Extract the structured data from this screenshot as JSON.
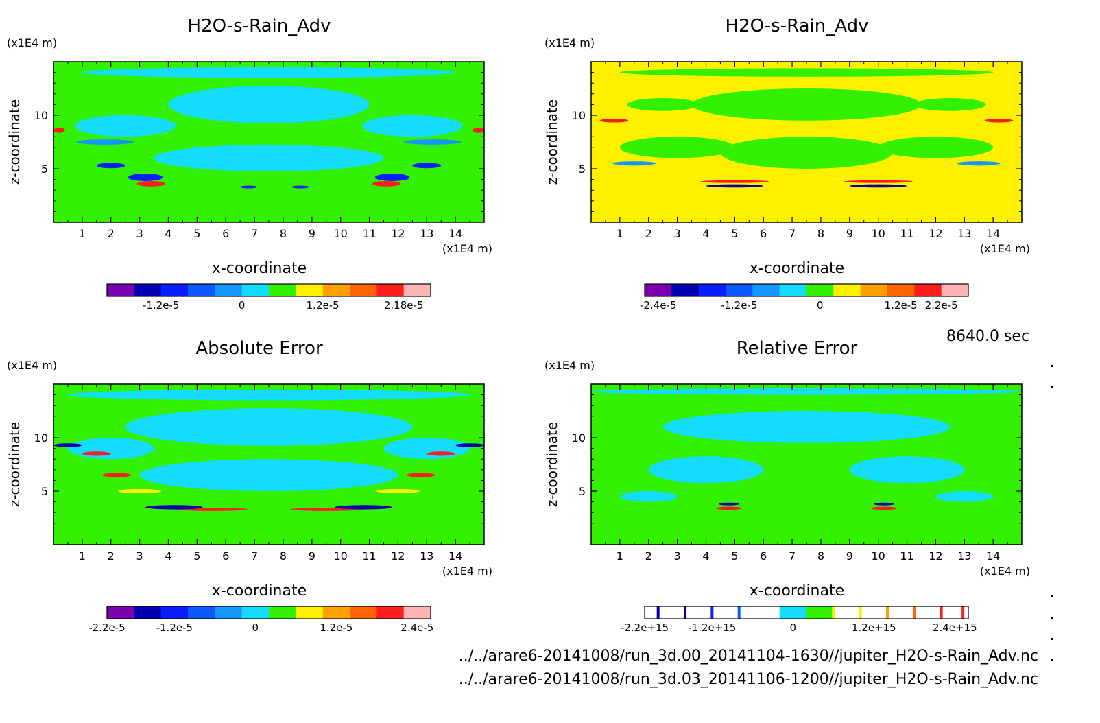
{
  "time_label": "8640.0 sec",
  "files": [
    "../../arare6-20141008/run_3d.00_20141104-1630//jupiter_H2O-s-Rain_Adv.nc",
    "../../arare6-20141008/run_3d.03_20141106-1200//jupiter_H2O-s-Rain_Adv.nc"
  ],
  "colors": {
    "purple": "#7a00b0",
    "navy": "#0000b0",
    "blue": "#0a1eff",
    "mid_blue": "#0a5aff",
    "sky": "#1496ff",
    "cyan": "#14dcff",
    "green": "#32f000",
    "yellow": "#fff000",
    "orange": "#ffa000",
    "dark_orange": "#ff6400",
    "red": "#ff1e1e",
    "pink": "#ffb4b4"
  },
  "chart_data": [
    {
      "type": "heatmap",
      "title": "H2O-s-Rain_Adv",
      "xlabel": "x-coordinate",
      "ylabel": "z-coordinate",
      "x_unit": "(x1E4 m)",
      "y_unit": "(x1E4 m)",
      "xlim": [
        0,
        15
      ],
      "ylim": [
        0,
        15
      ],
      "x_ticks": [
        1,
        2,
        3,
        4,
        5,
        6,
        7,
        8,
        9,
        10,
        11,
        12,
        13,
        14
      ],
      "y_ticks": [
        5,
        10
      ],
      "background": "green",
      "colorbar_colors": [
        "purple",
        "navy",
        "blue",
        "mid_blue",
        "sky",
        "cyan",
        "green",
        "yellow",
        "orange",
        "dark_orange",
        "red",
        "pink"
      ],
      "colorbar_labels": [
        "-1.2e-5",
        "0",
        "1.2e-5",
        "2.18e-5"
      ],
      "colorbar_label_pos": [
        2,
        5,
        8,
        11
      ],
      "blobs": [
        {
          "x": 7.5,
          "z": 11,
          "w": 7,
          "h": 3.5,
          "c": "cyan"
        },
        {
          "x": 7.5,
          "z": 6,
          "w": 8,
          "h": 2.5,
          "c": "cyan"
        },
        {
          "x": 2.5,
          "z": 9,
          "w": 3.5,
          "h": 2,
          "c": "cyan"
        },
        {
          "x": 12.5,
          "z": 9,
          "w": 3.5,
          "h": 2,
          "c": "cyan"
        },
        {
          "x": 7.5,
          "z": 14,
          "w": 13,
          "h": 1,
          "c": "cyan"
        },
        {
          "x": 1.8,
          "z": 7.5,
          "w": 2,
          "h": 0.5,
          "c": "sky"
        },
        {
          "x": 13.2,
          "z": 7.5,
          "w": 2,
          "h": 0.5,
          "c": "sky"
        },
        {
          "x": 3.2,
          "z": 4.2,
          "w": 1.2,
          "h": 0.7,
          "c": "blue"
        },
        {
          "x": 11.8,
          "z": 4.2,
          "w": 1.2,
          "h": 0.7,
          "c": "blue"
        },
        {
          "x": 3.4,
          "z": 3.6,
          "w": 1,
          "h": 0.5,
          "c": "red"
        },
        {
          "x": 11.6,
          "z": 3.6,
          "w": 1,
          "h": 0.5,
          "c": "red"
        },
        {
          "x": 2,
          "z": 5.3,
          "w": 1,
          "h": 0.5,
          "c": "blue"
        },
        {
          "x": 13,
          "z": 5.3,
          "w": 1,
          "h": 0.5,
          "c": "blue"
        },
        {
          "x": 0.2,
          "z": 8.6,
          "w": 0.4,
          "h": 0.5,
          "c": "red"
        },
        {
          "x": 14.8,
          "z": 8.6,
          "w": 0.4,
          "h": 0.5,
          "c": "red"
        },
        {
          "x": 6.8,
          "z": 3.3,
          "w": 0.6,
          "h": 0.25,
          "c": "blue"
        },
        {
          "x": 8.6,
          "z": 3.3,
          "w": 0.6,
          "h": 0.25,
          "c": "blue"
        }
      ]
    },
    {
      "type": "heatmap",
      "title": "H2O-s-Rain_Adv",
      "xlabel": "x-coordinate",
      "ylabel": "z-coordinate",
      "x_unit": "(x1E4 m)",
      "y_unit": "(x1E4 m)",
      "xlim": [
        0,
        15
      ],
      "ylim": [
        0,
        15
      ],
      "x_ticks": [
        1,
        2,
        3,
        4,
        5,
        6,
        7,
        8,
        9,
        10,
        11,
        12,
        13,
        14
      ],
      "y_ticks": [
        5,
        10
      ],
      "background": "yellow",
      "colorbar_colors": [
        "purple",
        "navy",
        "blue",
        "mid_blue",
        "sky",
        "cyan",
        "green",
        "yellow",
        "orange",
        "dark_orange",
        "red",
        "pink"
      ],
      "colorbar_labels": [
        "-2.4e-5",
        "-1.2e-5",
        "0",
        "1.2e-5",
        "2.2e-5"
      ],
      "colorbar_label_pos": [
        0.5,
        3.5,
        6.5,
        9.5,
        11
      ],
      "blobs": [
        {
          "x": 7.5,
          "z": 11,
          "w": 8,
          "h": 3,
          "c": "green"
        },
        {
          "x": 7.5,
          "z": 6.5,
          "w": 6,
          "h": 3,
          "c": "green"
        },
        {
          "x": 3,
          "z": 7,
          "w": 4,
          "h": 2,
          "c": "green"
        },
        {
          "x": 12,
          "z": 7,
          "w": 4,
          "h": 2,
          "c": "green"
        },
        {
          "x": 7.5,
          "z": 14,
          "w": 13,
          "h": 0.8,
          "c": "green"
        },
        {
          "x": 2.5,
          "z": 11,
          "w": 2.5,
          "h": 1.2,
          "c": "green"
        },
        {
          "x": 12.5,
          "z": 11,
          "w": 2.5,
          "h": 1.2,
          "c": "green"
        },
        {
          "x": 5,
          "z": 3.4,
          "w": 2,
          "h": 0.3,
          "c": "navy"
        },
        {
          "x": 10,
          "z": 3.4,
          "w": 2,
          "h": 0.3,
          "c": "navy"
        },
        {
          "x": 5,
          "z": 3.8,
          "w": 2.4,
          "h": 0.25,
          "c": "red"
        },
        {
          "x": 10,
          "z": 3.8,
          "w": 2.4,
          "h": 0.25,
          "c": "red"
        },
        {
          "x": 0.8,
          "z": 9.5,
          "w": 1,
          "h": 0.35,
          "c": "red"
        },
        {
          "x": 14.2,
          "z": 9.5,
          "w": 1,
          "h": 0.35,
          "c": "red"
        },
        {
          "x": 1.5,
          "z": 5.5,
          "w": 1.5,
          "h": 0.4,
          "c": "sky"
        },
        {
          "x": 13.5,
          "z": 5.5,
          "w": 1.5,
          "h": 0.4,
          "c": "sky"
        }
      ]
    },
    {
      "type": "heatmap",
      "title": "Absolute Error",
      "xlabel": "x-coordinate",
      "ylabel": "z-coordinate",
      "x_unit": "(x1E4 m)",
      "y_unit": "(x1E4 m)",
      "xlim": [
        0,
        15
      ],
      "ylim": [
        0,
        15
      ],
      "x_ticks": [
        1,
        2,
        3,
        4,
        5,
        6,
        7,
        8,
        9,
        10,
        11,
        12,
        13,
        14
      ],
      "y_ticks": [
        5,
        10
      ],
      "background": "green",
      "colorbar_colors": [
        "purple",
        "navy",
        "blue",
        "mid_blue",
        "sky",
        "cyan",
        "green",
        "yellow",
        "orange",
        "dark_orange",
        "red",
        "pink"
      ],
      "colorbar_labels": [
        "-2.2e-5",
        "-1.2e-5",
        "0",
        "1.2e-5",
        "2.4e-5"
      ],
      "colorbar_label_pos": [
        0,
        2.5,
        5.5,
        8.5,
        11.5
      ],
      "blobs": [
        {
          "x": 7.5,
          "z": 11,
          "w": 10,
          "h": 3.5,
          "c": "cyan"
        },
        {
          "x": 7.5,
          "z": 6.5,
          "w": 9,
          "h": 3,
          "c": "cyan"
        },
        {
          "x": 2,
          "z": 9,
          "w": 3,
          "h": 2,
          "c": "cyan"
        },
        {
          "x": 13,
          "z": 9,
          "w": 3,
          "h": 2,
          "c": "cyan"
        },
        {
          "x": 7.5,
          "z": 14,
          "w": 14,
          "h": 1,
          "c": "cyan"
        },
        {
          "x": 5.5,
          "z": 3.3,
          "w": 2.5,
          "h": 0.3,
          "c": "red"
        },
        {
          "x": 9.5,
          "z": 3.3,
          "w": 2.5,
          "h": 0.3,
          "c": "red"
        },
        {
          "x": 4.2,
          "z": 3.5,
          "w": 2,
          "h": 0.4,
          "c": "navy"
        },
        {
          "x": 10.8,
          "z": 3.5,
          "w": 2,
          "h": 0.4,
          "c": "navy"
        },
        {
          "x": 0.5,
          "z": 9.3,
          "w": 1,
          "h": 0.35,
          "c": "navy"
        },
        {
          "x": 14.5,
          "z": 9.3,
          "w": 1,
          "h": 0.35,
          "c": "navy"
        },
        {
          "x": 1.5,
          "z": 8.5,
          "w": 1,
          "h": 0.4,
          "c": "red"
        },
        {
          "x": 13.5,
          "z": 8.5,
          "w": 1,
          "h": 0.4,
          "c": "red"
        },
        {
          "x": 3,
          "z": 5,
          "w": 1.5,
          "h": 0.4,
          "c": "yellow"
        },
        {
          "x": 12,
          "z": 5,
          "w": 1.5,
          "h": 0.4,
          "c": "yellow"
        },
        {
          "x": 2.2,
          "z": 6.5,
          "w": 1,
          "h": 0.4,
          "c": "red"
        },
        {
          "x": 12.8,
          "z": 6.5,
          "w": 1,
          "h": 0.4,
          "c": "red"
        }
      ]
    },
    {
      "type": "heatmap",
      "title": "Relative Error",
      "xlabel": "x-coordinate",
      "ylabel": "z-coordinate",
      "x_unit": "(x1E4 m)",
      "y_unit": "(x1E4 m)",
      "xlim": [
        0,
        15
      ],
      "ylim": [
        0,
        15
      ],
      "x_ticks": [
        1,
        2,
        3,
        4,
        5,
        6,
        7,
        8,
        9,
        10,
        11,
        12,
        13,
        14
      ],
      "y_ticks": [
        5,
        10
      ],
      "background": "green",
      "colorbar_style": "sparse",
      "colorbar_colors": [
        "white",
        "white",
        "white",
        "white",
        "white",
        "cyan",
        "green",
        "white",
        "white",
        "white",
        "white",
        "white"
      ],
      "colorbar_marks": [
        {
          "pos": 0.5,
          "c": "navy"
        },
        {
          "pos": 1.5,
          "c": "navy"
        },
        {
          "pos": 2.5,
          "c": "blue"
        },
        {
          "pos": 3.5,
          "c": "mid_blue"
        },
        {
          "pos": 7,
          "c": "yellow"
        },
        {
          "pos": 8,
          "c": "yellow"
        },
        {
          "pos": 9,
          "c": "orange"
        },
        {
          "pos": 10,
          "c": "dark_orange"
        },
        {
          "pos": 11,
          "c": "red"
        },
        {
          "pos": 11.8,
          "c": "red"
        }
      ],
      "colorbar_labels": [
        "-2.2e+15",
        "-1.2e+15",
        "0",
        "1.2e+15",
        "2.4e+15"
      ],
      "colorbar_label_pos": [
        0,
        2.5,
        5.5,
        8.5,
        11.5
      ],
      "blobs": [
        {
          "x": 7.5,
          "z": 11,
          "w": 10,
          "h": 3,
          "c": "cyan"
        },
        {
          "x": 4,
          "z": 7,
          "w": 4,
          "h": 2.5,
          "c": "cyan"
        },
        {
          "x": 11,
          "z": 7,
          "w": 4,
          "h": 2.5,
          "c": "cyan"
        },
        {
          "x": 7.5,
          "z": 14.3,
          "w": 15,
          "h": 0.6,
          "c": "cyan"
        },
        {
          "x": 2,
          "z": 4.5,
          "w": 2,
          "h": 1,
          "c": "cyan"
        },
        {
          "x": 13,
          "z": 4.5,
          "w": 2,
          "h": 1,
          "c": "cyan"
        },
        {
          "x": 4.8,
          "z": 3.4,
          "w": 0.9,
          "h": 0.3,
          "c": "red"
        },
        {
          "x": 10.2,
          "z": 3.4,
          "w": 0.9,
          "h": 0.3,
          "c": "red"
        },
        {
          "x": 4.8,
          "z": 3.8,
          "w": 0.7,
          "h": 0.25,
          "c": "navy"
        },
        {
          "x": 10.2,
          "z": 3.8,
          "w": 0.7,
          "h": 0.25,
          "c": "navy"
        }
      ]
    }
  ]
}
